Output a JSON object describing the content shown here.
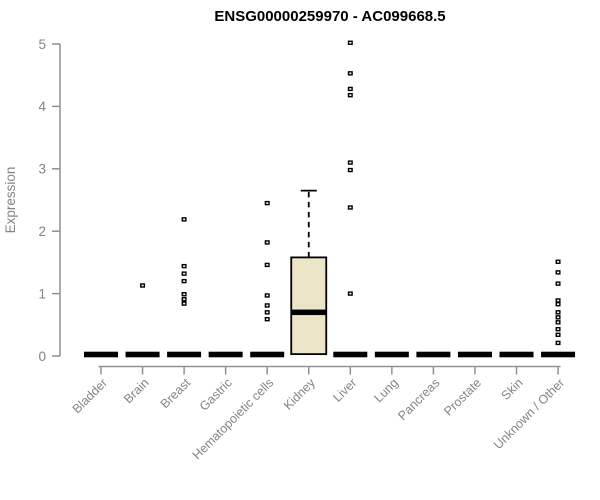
{
  "chart_data": {
    "type": "box",
    "title": "ENSG00000259970 - AC099668.5",
    "ylabel": "Expression",
    "xlabel": "",
    "ylim": [
      0,
      5
    ],
    "ytick_labels": [
      "0",
      "1",
      "2",
      "3",
      "4",
      "5"
    ],
    "grid": false,
    "legend": null,
    "categories": [
      "Bladder",
      "Brain",
      "Breast",
      "Gastric",
      "Hematopoietic cells",
      "Kidney",
      "Liver",
      "Lung",
      "Pancreas",
      "Prostate",
      "Skin",
      "Unknown / Other"
    ],
    "series": [
      {
        "category": "Bladder",
        "median": 0,
        "outliers": []
      },
      {
        "category": "Brain",
        "median": 0,
        "outliers": [
          1.13
        ]
      },
      {
        "category": "Breast",
        "median": 0,
        "outliers": [
          2.19,
          1.44,
          1.32,
          1.2,
          0.99,
          0.91,
          0.84
        ]
      },
      {
        "category": "Gastric",
        "median": 0,
        "outliers": []
      },
      {
        "category": "Hematopoietic cells",
        "median": 0,
        "outliers": [
          2.45,
          1.82,
          1.46,
          0.97,
          0.81,
          0.7,
          0.59
        ]
      },
      {
        "category": "Kidney",
        "median": 0.7,
        "q1": 0.03,
        "q3": 1.58,
        "whisker_low": 0.03,
        "whisker_high": 2.65,
        "outliers": []
      },
      {
        "category": "Liver",
        "median": 0,
        "outliers": [
          5.02,
          4.53,
          4.28,
          4.18,
          3.1,
          2.98,
          2.38,
          1.0
        ]
      },
      {
        "category": "Lung",
        "median": 0,
        "outliers": []
      },
      {
        "category": "Pancreas",
        "median": 0,
        "outliers": []
      },
      {
        "category": "Prostate",
        "median": 0,
        "outliers": []
      },
      {
        "category": "Skin",
        "median": 0,
        "outliers": []
      },
      {
        "category": "Unknown / Other",
        "median": 0,
        "outliers": [
          1.51,
          1.34,
          1.16,
          0.89,
          0.83,
          0.7,
          0.62,
          0.54,
          0.43,
          0.34,
          0.21
        ]
      }
    ],
    "colors": {
      "title": "#000000",
      "text": "#848484",
      "axis": "#919191",
      "box_fill": "#ede5c7",
      "box_border": "#000000",
      "median": "#000000",
      "marker": "#000000"
    }
  }
}
